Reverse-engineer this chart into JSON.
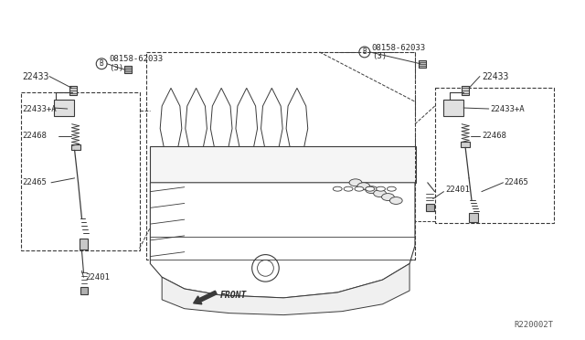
{
  "background_color": "#ffffff",
  "line_color": "#3a3a3a",
  "text_color": "#2a2a2a",
  "fig_width": 6.4,
  "fig_height": 3.72,
  "part_number_ref": "R220002T",
  "labels": {
    "p22433_left": "22433",
    "p22433_right": "22433",
    "p22433a_left": "22433+A",
    "p22433a_right": "22433+A",
    "p22468_left": "22468",
    "p22468_right": "22468",
    "p22465_left": "22465",
    "p22465_right": "22465",
    "p22401_left": "22401",
    "p22401_right": "22401",
    "bolt_text1": "08158-62033",
    "bolt_text2": "(3)",
    "front_text": "FRONT"
  }
}
